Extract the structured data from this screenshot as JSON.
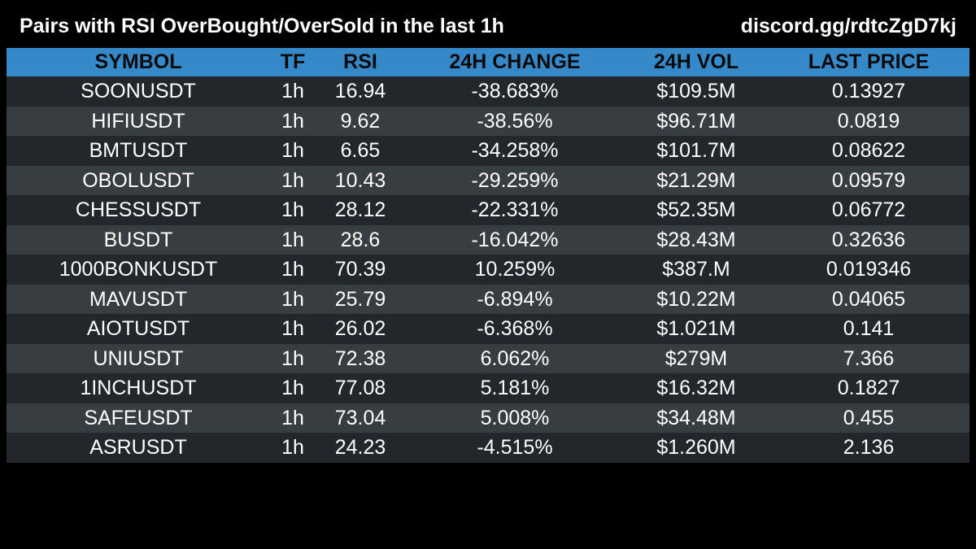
{
  "header": {
    "title": "Pairs with RSI OverBought/OverSold in the last 1h",
    "link": "discord.gg/rdtcZgD7kj"
  },
  "colors": {
    "background": "#000000",
    "header_row": "#3689c8",
    "row_dark": "#23272b",
    "row_light": "#383d42",
    "text": "#ffffff",
    "header_text": "#0a0a0a"
  },
  "table": {
    "columns": [
      "SYMBOL",
      "TF",
      "RSI",
      "24H CHANGE",
      "24H VOL",
      "LAST PRICE"
    ],
    "rows": [
      [
        "SOONUSDT",
        "1h",
        "16.94",
        "-38.683%",
        "$109.5M",
        "0.13927"
      ],
      [
        "HIFIUSDT",
        "1h",
        "9.62",
        "-38.56%",
        "$96.71M",
        "0.0819"
      ],
      [
        "BMTUSDT",
        "1h",
        "6.65",
        "-34.258%",
        "$101.7M",
        "0.08622"
      ],
      [
        "OBOLUSDT",
        "1h",
        "10.43",
        "-29.259%",
        "$21.29M",
        "0.09579"
      ],
      [
        "CHESSUSDT",
        "1h",
        "28.12",
        "-22.331%",
        "$52.35M",
        "0.06772"
      ],
      [
        "BUSDT",
        "1h",
        "28.6",
        "-16.042%",
        "$28.43M",
        "0.32636"
      ],
      [
        "1000BONKUSDT",
        "1h",
        "70.39",
        "10.259%",
        "$387.M",
        "0.019346"
      ],
      [
        "MAVUSDT",
        "1h",
        "25.79",
        "-6.894%",
        "$10.22M",
        "0.04065"
      ],
      [
        "AIOTUSDT",
        "1h",
        "26.02",
        "-6.368%",
        "$1.021M",
        "0.141"
      ],
      [
        "UNIUSDT",
        "1h",
        "72.38",
        "6.062%",
        "$279M",
        "7.366"
      ],
      [
        "1INCHUSDT",
        "1h",
        "77.08",
        "5.181%",
        "$16.32M",
        "0.1827"
      ],
      [
        "SAFEUSDT",
        "1h",
        "73.04",
        "5.008%",
        "$34.48M",
        "0.455"
      ],
      [
        "ASRUSDT",
        "1h",
        "24.23",
        "-4.515%",
        "$1.260M",
        "2.136"
      ]
    ]
  }
}
